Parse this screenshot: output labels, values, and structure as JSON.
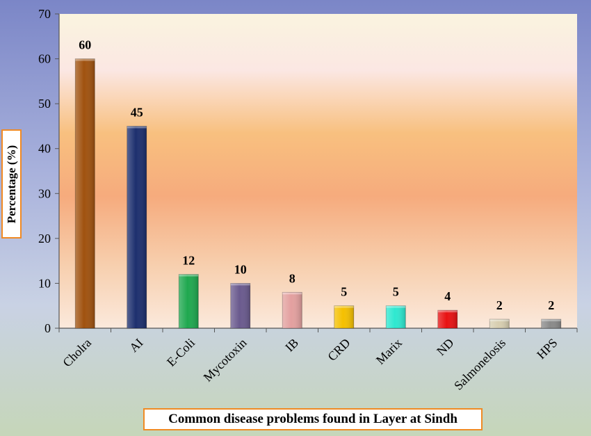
{
  "chart_data": {
    "type": "bar",
    "title": "Common disease problems found in Layer at Sindh",
    "xlabel": "",
    "ylabel": "Percentage (%)",
    "ylim": [
      0,
      70
    ],
    "yticks": [
      "0",
      "10",
      "20",
      "30",
      "40",
      "50",
      "60",
      "70"
    ],
    "categories": [
      "Cholra",
      "AI",
      "E-Coli",
      "Mycotoxin",
      "IB",
      "CRD",
      "Marix",
      "ND",
      "Salmonelosis",
      "HPS"
    ],
    "values": [
      60,
      45,
      12,
      10,
      8,
      5,
      5,
      4,
      2,
      2
    ],
    "colors": [
      "#a0520f",
      "#1d2f6e",
      "#1fa84f",
      "#6a5a8e",
      "#e3a09f",
      "#f5c000",
      "#2ee8d0",
      "#e81212",
      "#d7ceb0",
      "#8a8a8a"
    ],
    "data_labels": [
      "60",
      "45",
      "12",
      "10",
      "8",
      "5",
      "5",
      "4",
      "2",
      "2"
    ],
    "grid": false,
    "legend": "none"
  }
}
